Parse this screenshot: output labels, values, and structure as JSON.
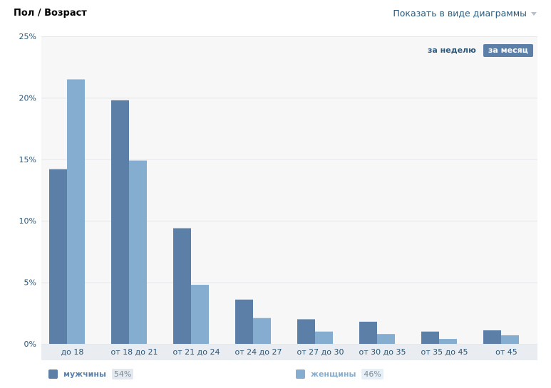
{
  "header": {
    "title": "Пол / Возраст",
    "view_toggle_label": "Показать в виде диаграммы"
  },
  "period": {
    "week_label": "за неделю",
    "month_label": "за месяц",
    "selected": "month"
  },
  "colors": {
    "male": "#5b7fa6",
    "female": "#85adcf",
    "plot_bg": "#f7f7f8",
    "axis_band": "#e9edf1",
    "grid": "#e5e7ea",
    "tick_text": "#2b587a"
  },
  "legend": [
    {
      "name": "мужчины",
      "pct": "54%",
      "pct_bg": "#e3e9ef"
    },
    {
      "name": "женщины",
      "pct": "46%",
      "pct_bg": "#e7eff7"
    }
  ],
  "chart_data": {
    "type": "bar",
    "categories": [
      "до 18",
      "от 18 до 21",
      "от 21 до 24",
      "от 24 до 27",
      "от 27 до 30",
      "от 30 до 35",
      "от 35 до 45",
      "от 45"
    ],
    "series": [
      {
        "name": "мужчины",
        "values": [
          14.2,
          19.8,
          9.4,
          3.6,
          2.0,
          1.8,
          1.0,
          1.1
        ]
      },
      {
        "name": "женщины",
        "values": [
          21.5,
          14.9,
          4.8,
          2.1,
          1.0,
          0.8,
          0.4,
          0.7
        ]
      }
    ],
    "ylim": [
      0,
      25
    ],
    "yticks": [
      "0%",
      "5%",
      "10%",
      "15%",
      "20%",
      "25%"
    ],
    "ytick_values": [
      0,
      5,
      10,
      15,
      20,
      25
    ],
    "grid": true,
    "legend_position": "bottom"
  }
}
